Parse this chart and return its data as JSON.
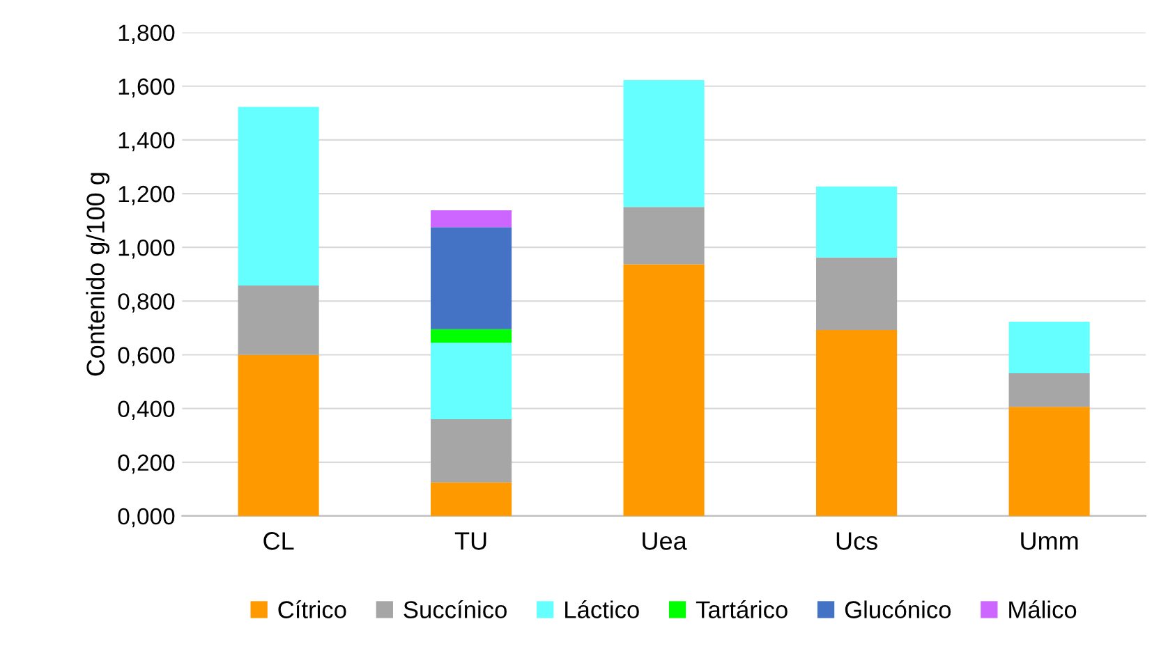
{
  "chart_data": {
    "type": "bar",
    "stacked": true,
    "ylabel": "Contenido g/100 g",
    "categories": [
      "CL",
      "TU",
      "Uea",
      "Ucs",
      "Umm"
    ],
    "series": [
      {
        "name": "Cítrico",
        "color": "#ff9900",
        "values": [
          0.6,
          0.125,
          0.937,
          0.692,
          0.406
        ]
      },
      {
        "name": "Succínico",
        "color": "#a6a6a6",
        "values": [
          0.258,
          0.235,
          0.213,
          0.27,
          0.125
        ]
      },
      {
        "name": "Láctico",
        "color": "#66ffff",
        "values": [
          0.665,
          0.285,
          0.473,
          0.265,
          0.192
        ]
      },
      {
        "name": "Tartárico",
        "color": "#00ff00",
        "values": [
          0,
          0.05,
          0,
          0,
          0
        ]
      },
      {
        "name": "Glucónico",
        "color": "#4472c4",
        "values": [
          0,
          0.38,
          0,
          0,
          0
        ]
      },
      {
        "name": "Málico",
        "color": "#cc66ff",
        "values": [
          0,
          0.063,
          0,
          0,
          0
        ]
      }
    ],
    "ylim": [
      0,
      1.8
    ],
    "yticks": [
      {
        "value": 0,
        "label": "0,000"
      },
      {
        "value": 0.2,
        "label": "0,200"
      },
      {
        "value": 0.4,
        "label": "0,400"
      },
      {
        "value": 0.6,
        "label": "0,600"
      },
      {
        "value": 0.8,
        "label": "0,800"
      },
      {
        "value": 1.0,
        "label": "1,000"
      },
      {
        "value": 1.2,
        "label": "1,200"
      },
      {
        "value": 1.4,
        "label": "1,400"
      },
      {
        "value": 1.6,
        "label": "1,600"
      },
      {
        "value": 1.8,
        "label": "1,800"
      }
    ],
    "grid": "y",
    "legend": "bottom"
  }
}
